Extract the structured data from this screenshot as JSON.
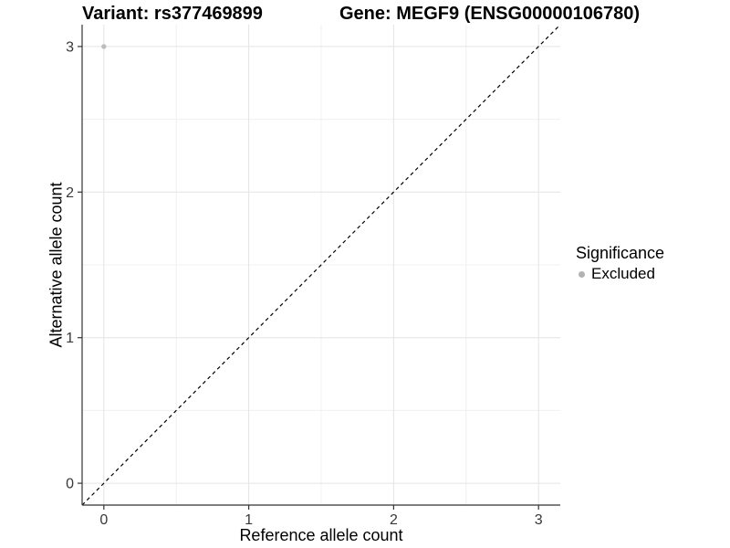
{
  "chart_data": {
    "type": "scatter",
    "title_left": "Variant: rs377469899",
    "title_right": "Gene: MEGF9 (ENSG00000106780)",
    "xlabel": "Reference allele count",
    "ylabel": "Alternative allele count",
    "xlim": [
      -0.15,
      3.15
    ],
    "ylim": [
      -0.15,
      3.15
    ],
    "x_ticks": [
      0,
      1,
      2,
      3
    ],
    "y_ticks": [
      0,
      1,
      2,
      3
    ],
    "x_minor_ticks": [
      0.5,
      1.5,
      2.5
    ],
    "y_minor_ticks": [
      0.5,
      1.5,
      2.5
    ],
    "grid": true,
    "reference_line": {
      "type": "identity",
      "slope": 1,
      "intercept": 0,
      "style": "dashed",
      "color": "#000000"
    },
    "series": [
      {
        "name": "Excluded",
        "color": "#bdbdbd",
        "points": [
          {
            "x": 0,
            "y": 3
          }
        ]
      }
    ],
    "legend": {
      "title": "Significance",
      "position": "right",
      "entries": [
        {
          "label": "Excluded",
          "color": "#b3b3b3"
        }
      ]
    },
    "colors": {
      "background": "#ffffff",
      "grid_major": "#e4e4e4",
      "grid_minor": "#f0f0f0",
      "axis_line": "#333333",
      "tick_label": "#383838",
      "point": "#bdbdbd"
    }
  }
}
